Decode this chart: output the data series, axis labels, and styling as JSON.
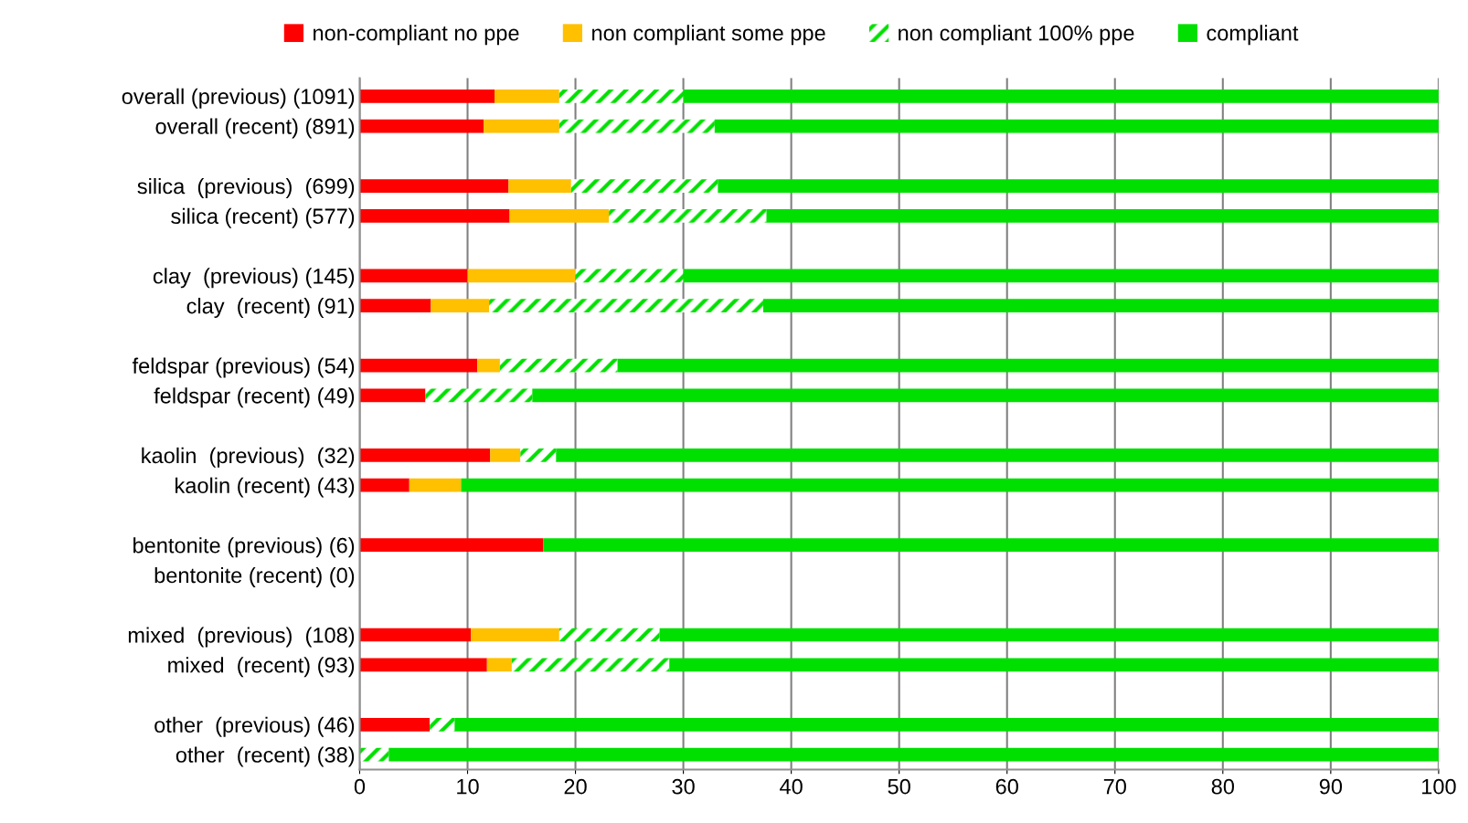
{
  "chart_data": {
    "type": "bar",
    "orientation": "horizontal",
    "stacked": true,
    "categories": [
      "overall (previous) (1091)",
      "overall (recent) (891)",
      null,
      "silica  (previous)  (699)",
      "silica (recent) (577)",
      null,
      "clay  (previous) (145)",
      "clay  (recent) (91)",
      null,
      "feldspar (previous) (54)",
      "feldspar (recent) (49)",
      null,
      "kaolin  (previous)  (32)",
      "kaolin (recent) (43)",
      null,
      "bentonite (previous) (6)",
      "bentonite (recent) (0)",
      null,
      "mixed  (previous)  (108)",
      "mixed  (recent) (93)",
      null,
      "other  (previous) (46)",
      "other  (recent) (38)"
    ],
    "series": [
      {
        "name": "non-compliant no ppe",
        "color": "#ff0000",
        "values": [
          12.5,
          11.5,
          null,
          13.8,
          13.9,
          null,
          10.0,
          6.6,
          null,
          10.9,
          6.1,
          null,
          12.1,
          4.6,
          null,
          17.0,
          null,
          null,
          10.3,
          11.8,
          null,
          6.5,
          0
        ]
      },
      {
        "name": "non compliant some ppe",
        "color": "#ffc000",
        "values": [
          6.0,
          7.0,
          null,
          5.8,
          9.2,
          null,
          10.0,
          5.4,
          null,
          2.1,
          0,
          null,
          2.8,
          4.8,
          null,
          0,
          null,
          null,
          8.2,
          2.3,
          null,
          0,
          0
        ]
      },
      {
        "name": "non compliant 100% ppe",
        "color": "#00e000",
        "line_style": "dashed",
        "values": [
          11.5,
          14.4,
          null,
          13.6,
          14.6,
          null,
          10.0,
          25.4,
          null,
          10.9,
          9.9,
          null,
          3.3,
          0,
          null,
          0,
          null,
          null,
          9.3,
          14.6,
          null,
          2.3,
          2.7
        ]
      },
      {
        "name": "compliant",
        "color": "#00e000",
        "values": [
          70.0,
          67.1,
          null,
          66.8,
          62.3,
          null,
          70.0,
          62.6,
          null,
          76.1,
          84.0,
          null,
          81.8,
          90.6,
          null,
          83.0,
          null,
          null,
          72.2,
          71.3,
          null,
          91.2,
          97.3
        ]
      }
    ],
    "xlim": [
      0,
      100
    ],
    "xticks": [
      0,
      10,
      20,
      30,
      40,
      50,
      60,
      70,
      80,
      90,
      100
    ],
    "grid": "x",
    "legend": "top"
  }
}
